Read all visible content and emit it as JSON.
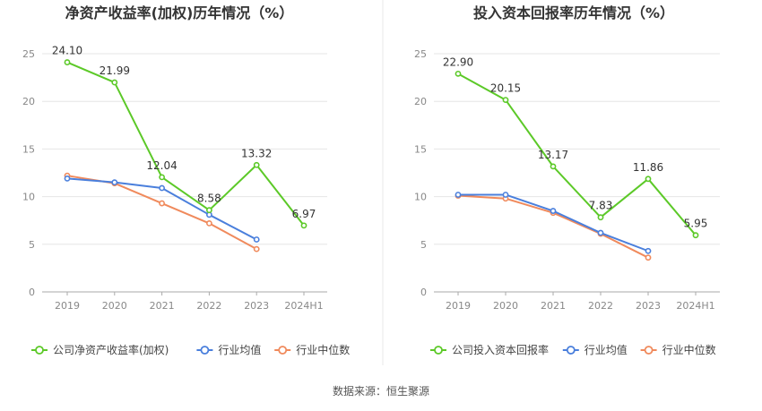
{
  "source_text": "数据来源：恒生聚源",
  "colors": {
    "company": "#5cc928",
    "avg": "#4a7fdc",
    "median": "#f08a5c",
    "grid": "#e6e6e6",
    "axis": "#888888",
    "divider": "#e8e8e8"
  },
  "chart_data": [
    {
      "type": "line",
      "title": "净资产收益率(加权)历年情况（%）",
      "categories": [
        "2019",
        "2020",
        "2021",
        "2022",
        "2023",
        "2024H1"
      ],
      "yticks": [
        0,
        5,
        10,
        15,
        20,
        25
      ],
      "ylim": [
        0,
        25
      ],
      "grid": true,
      "legend_position": "bottom",
      "series": [
        {
          "name": "公司净资产收益率(加权)",
          "color": "#5cc928",
          "values": [
            24.1,
            21.99,
            12.04,
            8.58,
            13.32,
            6.97
          ],
          "labels": [
            "24.10",
            "21.99",
            "12.04",
            "8.58",
            "13.32",
            "6.97"
          ]
        },
        {
          "name": "行业均值",
          "color": "#4a7fdc",
          "values": [
            11.9,
            11.5,
            10.9,
            8.1,
            5.5,
            null
          ]
        },
        {
          "name": "行业中位数",
          "color": "#f08a5c",
          "values": [
            12.2,
            11.4,
            9.3,
            7.2,
            4.5,
            null
          ]
        }
      ]
    },
    {
      "type": "line",
      "title": "投入资本回报率历年情况（%）",
      "categories": [
        "2019",
        "2020",
        "2021",
        "2022",
        "2023",
        "2024H1"
      ],
      "yticks": [
        0,
        5,
        10,
        15,
        20,
        25
      ],
      "ylim": [
        0,
        25
      ],
      "grid": true,
      "legend_position": "bottom",
      "series": [
        {
          "name": "公司投入资本回报率",
          "color": "#5cc928",
          "values": [
            22.9,
            20.15,
            13.17,
            7.83,
            11.86,
            5.95
          ],
          "labels": [
            "22.90",
            "20.15",
            "13.17",
            "7.83",
            "11.86",
            "5.95"
          ]
        },
        {
          "name": "行业均值",
          "color": "#4a7fdc",
          "values": [
            10.2,
            10.2,
            8.5,
            6.2,
            4.3,
            null
          ]
        },
        {
          "name": "行业中位数",
          "color": "#f08a5c",
          "values": [
            10.1,
            9.8,
            8.3,
            6.1,
            3.6,
            null
          ]
        }
      ]
    }
  ]
}
